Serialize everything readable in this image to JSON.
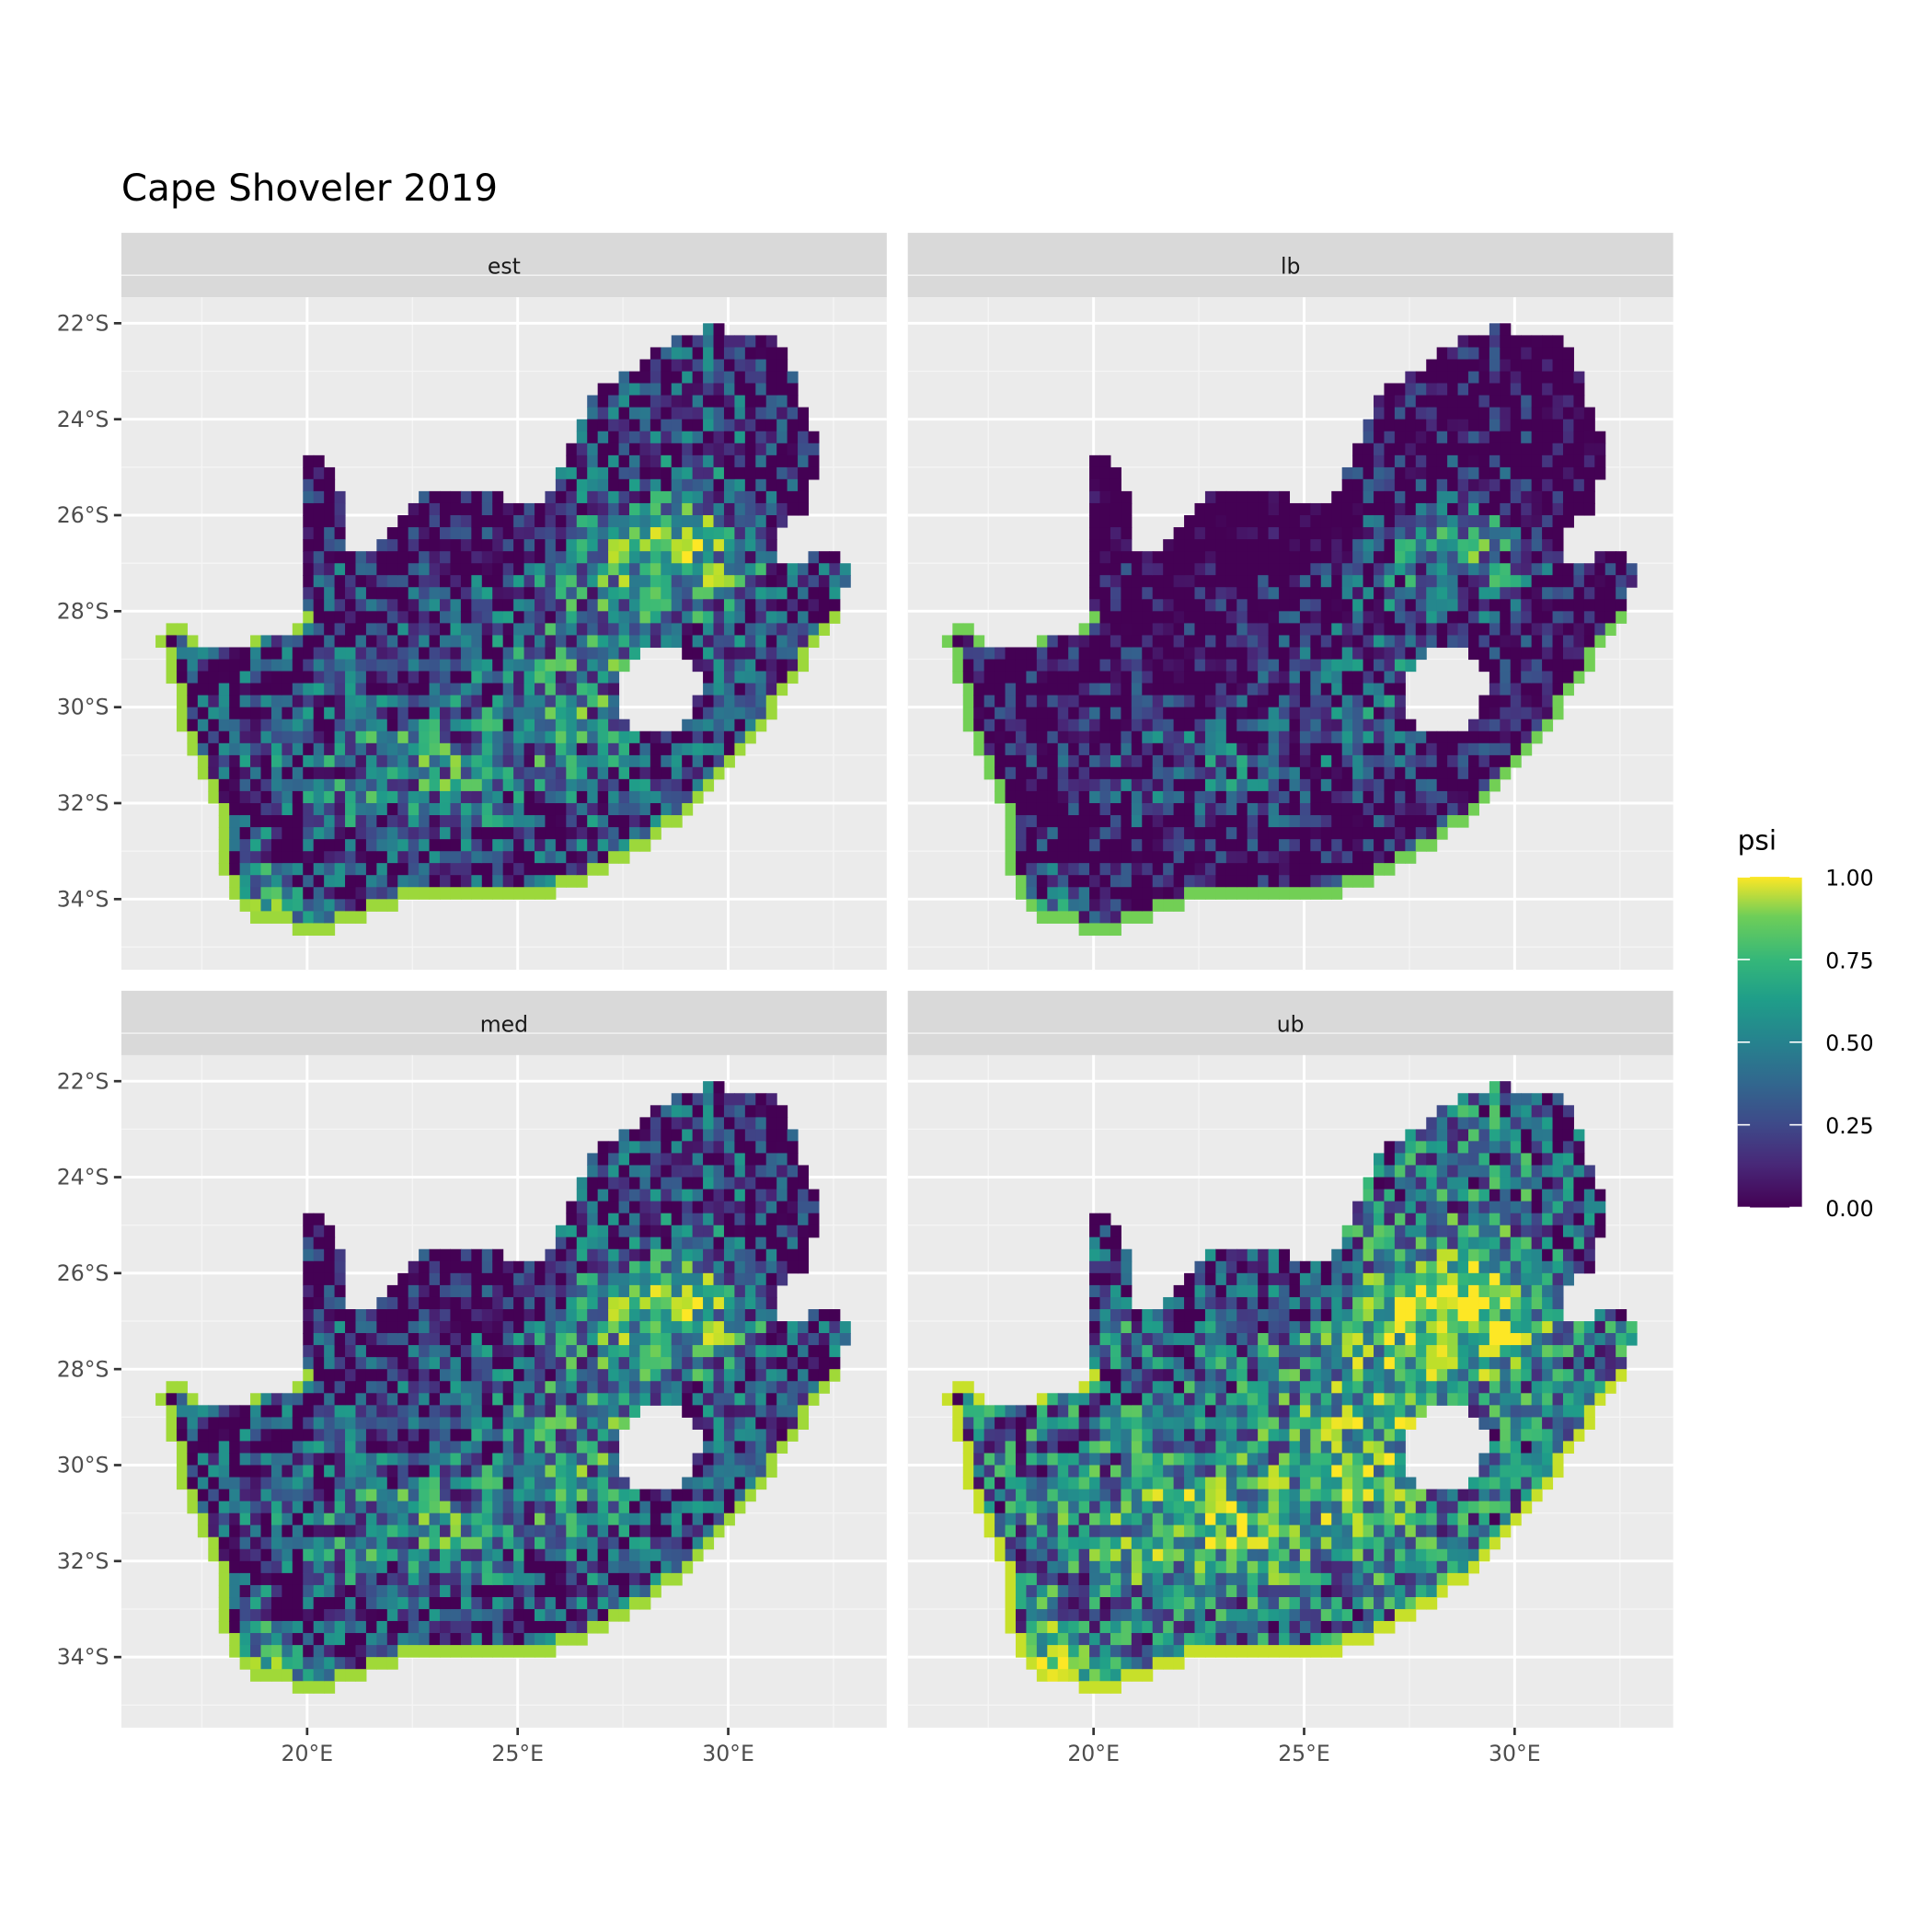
{
  "chart_data": {
    "type": "heatmap",
    "title": "Cape Shoveler 2019",
    "facets": [
      "est",
      "lb",
      "med",
      "ub"
    ],
    "x_ticks": [
      "20°E",
      "25°E",
      "30°E"
    ],
    "x_tick_values": [
      20,
      25,
      30
    ],
    "y_ticks": [
      "22°S",
      "24°S",
      "26°S",
      "28°S",
      "30°S",
      "32°S",
      "34°S"
    ],
    "y_tick_values": [
      -22,
      -24,
      -26,
      -28,
      -30,
      -32,
      -34
    ],
    "xlim": [
      15.6,
      33.8
    ],
    "ylim": [
      -35.5,
      -21.5
    ],
    "grid": true,
    "legend": {
      "title": "psi",
      "position": "right",
      "labels": [
        "1.00",
        "0.75",
        "0.50",
        "0.25",
        "0.00"
      ],
      "values": [
        1.0,
        0.75,
        0.5,
        0.25,
        0.0
      ],
      "colormap": "viridis",
      "colors": [
        "#440154",
        "#3b528b",
        "#21908c",
        "#5dc863",
        "#fde725"
      ]
    },
    "panel_background": "#ebebeb",
    "strip_background": "#d9d9d9"
  }
}
